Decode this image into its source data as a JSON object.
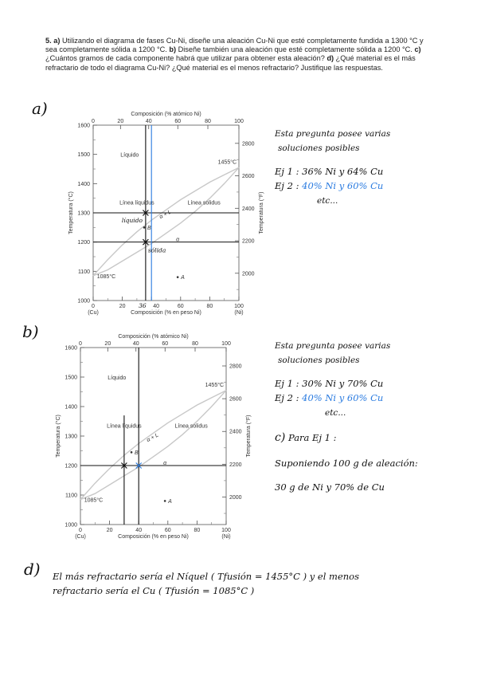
{
  "question": {
    "number": "5.",
    "a_marker": "a)",
    "a_text": " Utilizando el diagrama de fases Cu-Ni, diseñe una aleación Cu-Ni que esté completamente fundida a 1300 °C y sea completamente sólida a 1200 °C. ",
    "b_marker": "b)",
    "b_text": " Diseñe también una aleación que esté completamente sólida a 1200 °C. ",
    "c_marker": "c)",
    "c_text": " ¿Cuántos gramos de cada componente habrá que utilizar para obtener esta aleación? ",
    "d_marker": "d)",
    "d_text": " ¿Qué material es el más refractario de todo el diagrama Cu-Ni? ¿Qué material es el menos refractario? Justifique las respuestas."
  },
  "chart_common": {
    "top_axis_title": "Composición (% atómico Ni)",
    "top_ticks": [
      "0",
      "20",
      "40",
      "60",
      "80",
      "100"
    ],
    "bottom_axis_title": "Composición (% en peso Ni)",
    "bottom_ticks": [
      "0",
      "20",
      "40",
      "60",
      "80",
      "100"
    ],
    "bottom_end_left": "(Cu)",
    "bottom_end_right": "(Ni)",
    "left_axis_title": "Temperatura (°C)",
    "left_ticks": [
      "1600",
      "1500",
      "1400",
      "1300",
      "1200",
      "1100",
      "1000"
    ],
    "right_axis_title": "Temperatura (°F)",
    "right_ticks": [
      "2800",
      "2600",
      "2400",
      "2200",
      "2000"
    ],
    "label_liquid": "Líquido",
    "label_liquidus": "Línea líquidus",
    "label_solidus": "Línea solidus",
    "label_alpha_l": "α + L",
    "label_alpha": "α",
    "label_ni_melt": "1455°C",
    "label_cu_melt": "1085°C",
    "point_a": "A",
    "point_b": "B"
  },
  "chart_data": [
    {
      "type": "line",
      "id": "phase-diagram-a",
      "x_unit": "% en peso Ni",
      "y_unit": "°C",
      "xlim": [
        0,
        100
      ],
      "ylim": [
        1000,
        1600
      ],
      "liquidus": {
        "x": [
          0,
          10,
          20,
          30,
          40,
          50,
          60,
          70,
          80,
          90,
          100
        ],
        "y": [
          1085,
          1140,
          1190,
          1235,
          1275,
          1310,
          1345,
          1375,
          1405,
          1430,
          1455
        ]
      },
      "solidus": {
        "x": [
          0,
          10,
          20,
          30,
          40,
          50,
          60,
          70,
          80,
          90,
          100
        ],
        "y": [
          1085,
          1105,
          1135,
          1165,
          1195,
          1230,
          1265,
          1305,
          1350,
          1400,
          1455
        ]
      },
      "horizontal_lines": [
        1300,
        1200
      ],
      "vertical_lines": [
        {
          "x": 36,
          "color": "#111111"
        },
        {
          "x": 40,
          "color": "#2a7be0"
        }
      ],
      "points": [
        {
          "label": "A",
          "x": 58,
          "y": 1080
        },
        {
          "label": "B",
          "x": 35,
          "y": 1250
        }
      ],
      "marks": [
        {
          "x": 36,
          "y": 1300
        },
        {
          "x": 36,
          "y": 1200
        }
      ],
      "handwritten_labels": {
        "upper": "líquido",
        "lower": "sólida",
        "axis_note": "36"
      }
    },
    {
      "type": "line",
      "id": "phase-diagram-b",
      "x_unit": "% en peso Ni",
      "y_unit": "°C",
      "xlim": [
        0,
        100
      ],
      "ylim": [
        1000,
        1600
      ],
      "liquidus": {
        "x": [
          0,
          10,
          20,
          30,
          40,
          50,
          60,
          70,
          80,
          90,
          100
        ],
        "y": [
          1085,
          1140,
          1190,
          1235,
          1275,
          1310,
          1345,
          1375,
          1405,
          1430,
          1455
        ]
      },
      "solidus": {
        "x": [
          0,
          10,
          20,
          30,
          40,
          50,
          60,
          70,
          80,
          90,
          100
        ],
        "y": [
          1085,
          1105,
          1135,
          1165,
          1195,
          1230,
          1265,
          1305,
          1350,
          1400,
          1455
        ]
      },
      "horizontal_lines": [
        1200
      ],
      "vertical_lines": [
        {
          "x": 30,
          "color": "#111111",
          "from": 1000,
          "to": 1370
        },
        {
          "x": 40,
          "color": "#111111",
          "from": 1000,
          "to": 1600
        }
      ],
      "points": [
        {
          "label": "A",
          "x": 58,
          "y": 1080
        },
        {
          "label": "B",
          "x": 35,
          "y": 1245
        }
      ],
      "marks": [
        {
          "x": 30,
          "y": 1200,
          "color": "#111111"
        },
        {
          "x": 40,
          "y": 1200,
          "color": "#2a7be0"
        }
      ]
    }
  ],
  "answers": {
    "a": {
      "label": "a)",
      "line1": "Esta pregunta posee varias",
      "line2": "soluciones posibles",
      "ej1_prefix": "Ej 1 :",
      "ej1_text": "36% Ni  y  64% Cu",
      "ej2_prefix": "Ej 2 :",
      "ej2_text": "40% Ni  y  60% Cu",
      "etc": "etc..."
    },
    "b": {
      "label": "b)",
      "line1": "Esta pregunta posee varias",
      "line2": "soluciones posibles",
      "ej1_prefix": "Ej 1 :",
      "ej1_text": "30% Ni  y  70% Cu",
      "ej2_prefix": "Ej 2 :",
      "ej2_text": "40% Ni  y  60% Cu",
      "etc": "etc..."
    },
    "c": {
      "label": "c)",
      "line1": "Para  Ej 1 :",
      "line2": "Suponiendo  100 g  de  aleación:",
      "line3": "30 g  de  Ni  y  70%  de  Cu"
    },
    "d": {
      "label": "d)",
      "line1": "El  más  refractario  sería  el  Níquel  ( Tfusión = 1455°C )  y  el  menos",
      "line2": "refractario  sería  el  Cu  ( Tfusión = 1085°C )"
    }
  }
}
